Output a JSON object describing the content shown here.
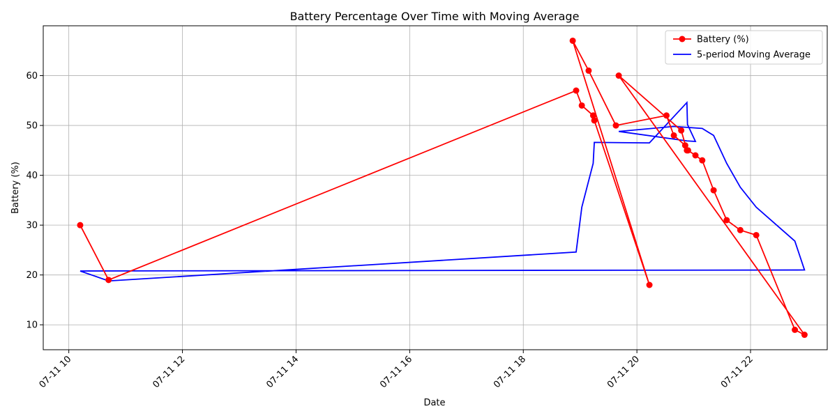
{
  "chart_data": {
    "type": "line",
    "title": "Battery Percentage Over Time with Moving Average",
    "xlabel": "Date",
    "ylabel": "Battery (%)",
    "x_unit": "hour of day on 07-11",
    "xlim": [
      9.55,
      23.35
    ],
    "ylim": [
      5,
      70
    ],
    "x_ticks": [
      {
        "value": 10,
        "label": "07-11 10"
      },
      {
        "value": 12,
        "label": "07-11 12"
      },
      {
        "value": 14,
        "label": "07-11 14"
      },
      {
        "value": 16,
        "label": "07-11 16"
      },
      {
        "value": 18,
        "label": "07-11 18"
      },
      {
        "value": 20,
        "label": "07-11 20"
      },
      {
        "value": 22,
        "label": "07-11 22"
      }
    ],
    "y_ticks": [
      10,
      20,
      30,
      40,
      50,
      60
    ],
    "grid": true,
    "legend_position": "top-right",
    "series": [
      {
        "name": "Battery (%)",
        "color": "#ff0000",
        "marker": "circle",
        "x": [
          10.2,
          10.7,
          18.93,
          19.03,
          19.23,
          19.25,
          20.22,
          18.87,
          19.15,
          19.63,
          20.52,
          20.65,
          20.85,
          20.9,
          21.03,
          21.15,
          21.35,
          21.58,
          21.82,
          22.1,
          22.78,
          22.95,
          19.68,
          20.78,
          20.88
        ],
        "y": [
          30,
          19,
          57,
          54,
          52,
          51,
          18,
          67,
          61,
          50,
          52,
          48,
          46,
          45,
          44,
          43,
          37,
          31,
          29,
          28,
          9,
          8,
          60,
          49,
          45
        ]
      },
      {
        "name": "5-period Moving Average",
        "color": "#0000ff",
        "marker": "none",
        "x": [
          10.2,
          10.7,
          18.93,
          19.03,
          19.23,
          19.25,
          20.22,
          18.87,
          19.15,
          19.63,
          20.52,
          20.65,
          20.85,
          20.9,
          21.03,
          21.15,
          21.35,
          21.58,
          21.82,
          22.1,
          22.78,
          22.95,
          19.68,
          20.78,
          20.88
        ],
        "y": [
          20.8,
          18.8,
          24.6,
          33.6,
          42.4,
          46.6,
          46.5,
          null,
          null,
          null,
          null,
          null,
          null,
          null,
          null,
          null,
          null,
          null,
          null,
          null,
          null,
          null,
          null,
          null,
          null
        ],
        "x_poly": [
          10.2,
          10.7,
          18.93,
          19.03,
          19.23,
          19.25,
          20.22
        ],
        "y_poly": [
          20.8,
          18.8,
          24.6,
          33.6,
          42.4,
          46.6,
          46.5
        ],
        "path": [
          [
            10.2,
            20.8
          ],
          [
            10.7,
            18.8
          ],
          [
            18.93,
            24.6
          ],
          [
            19.03,
            33.6
          ],
          [
            19.23,
            42.4
          ],
          [
            19.25,
            46.6
          ],
          [
            20.22,
            46.5
          ]
        ],
        "path_extra": [
          [
            20.88,
            54.6
          ],
          [
            20.89,
            50.2
          ],
          [
            21.03,
            46.8
          ],
          [
            20.88,
            46.9
          ],
          [
            19.68,
            48.8
          ],
          [
            20.65,
            49.8
          ],
          [
            21.15,
            49.4
          ],
          [
            21.35,
            48.0
          ],
          [
            21.58,
            42.4
          ],
          [
            21.82,
            37.6
          ],
          [
            22.1,
            33.6
          ],
          [
            22.78,
            26.8
          ],
          [
            22.95,
            21.0
          ],
          [
            10.2,
            20.8
          ]
        ]
      }
    ]
  }
}
